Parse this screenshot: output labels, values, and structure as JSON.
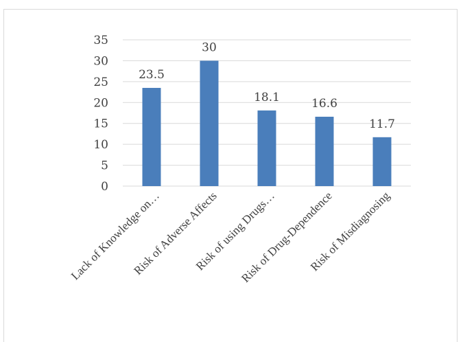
{
  "chart_data": {
    "type": "bar",
    "categories": [
      "Lack of Knowledge on…",
      "Risk of Adverse Affects",
      "Risk of using Drugs…",
      "Risk of Drug-Dependence",
      "Risk of Misdiagnosing"
    ],
    "values": [
      23.5,
      30,
      18.1,
      16.6,
      11.7
    ],
    "data_labels": [
      "23.5",
      "30",
      "18.1",
      "16.6",
      "11.7"
    ],
    "yticks": [
      0,
      5,
      10,
      15,
      20,
      25,
      30,
      35
    ],
    "ylim": [
      0,
      35
    ],
    "title": "",
    "xlabel": "",
    "ylabel": "",
    "grid": true,
    "legend": "none",
    "bar_color": "#4a7ebb",
    "grid_color": "#d9d9d9"
  }
}
